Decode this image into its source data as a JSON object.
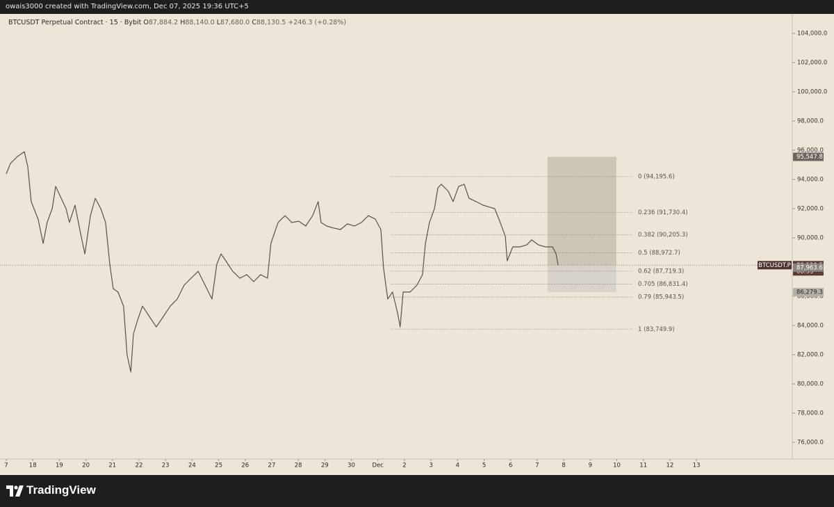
{
  "header": {
    "text": "owais3000 created with TradingView.com, Dec 07, 2025 19:36 UTC+5"
  },
  "footer": {
    "brand": "TradingView"
  },
  "chart_data": {
    "type": "line",
    "legend": {
      "symbol": "BTCUSDT Perpetual Contract · 15 · Bybit",
      "items": [
        {
          "key": "O",
          "text": "87,884.2"
        },
        {
          "key": "H",
          "text": "88,140.0"
        },
        {
          "key": "L",
          "text": "87,680.0"
        },
        {
          "key": "C",
          "text": "88,130.5"
        }
      ],
      "change": "+246.3 (+0.28%)"
    },
    "xlim": [
      -0.236,
      29.61
    ],
    "ylim": [
      73905,
      105333
    ],
    "xticks": [
      {
        "value": 0,
        "label": "7"
      },
      {
        "value": 1,
        "label": "18"
      },
      {
        "value": 2,
        "label": "19"
      },
      {
        "value": 3,
        "label": "20"
      },
      {
        "value": 4,
        "label": "21"
      },
      {
        "value": 5,
        "label": "22"
      },
      {
        "value": 6,
        "label": "23"
      },
      {
        "value": 7,
        "label": "24"
      },
      {
        "value": 8,
        "label": "25"
      },
      {
        "value": 9,
        "label": "26"
      },
      {
        "value": 10,
        "label": "27"
      },
      {
        "value": 11,
        "label": "28"
      },
      {
        "value": 12,
        "label": "29"
      },
      {
        "value": 13,
        "label": "30"
      },
      {
        "value": 14,
        "label": "Dec"
      },
      {
        "value": 15,
        "label": "2"
      },
      {
        "value": 16,
        "label": "3"
      },
      {
        "value": 17,
        "label": "4"
      },
      {
        "value": 18,
        "label": "5"
      },
      {
        "value": 19,
        "label": "6"
      },
      {
        "value": 20,
        "label": "7"
      },
      {
        "value": 21,
        "label": "8"
      },
      {
        "value": 22,
        "label": "9"
      },
      {
        "value": 23,
        "label": "10"
      },
      {
        "value": 24,
        "label": "11"
      },
      {
        "value": 25,
        "label": "12"
      },
      {
        "value": 26,
        "label": "13"
      }
    ],
    "yticks": [
      {
        "value": 76000,
        "label": "76,000.0"
      },
      {
        "value": 78000,
        "label": "78,000.0"
      },
      {
        "value": 80000,
        "label": "80,000.0"
      },
      {
        "value": 82000,
        "label": "82,000.0"
      },
      {
        "value": 84000,
        "label": "84,000.0"
      },
      {
        "value": 86000,
        "label": "86,000.0"
      },
      {
        "value": 88000,
        "label": "88,000.0"
      },
      {
        "value": 90000,
        "label": "90,000.0"
      },
      {
        "value": 92000,
        "label": "92,000.0"
      },
      {
        "value": 94000,
        "label": "94,000.0"
      },
      {
        "value": 96000,
        "label": "96,000.0"
      },
      {
        "value": 98000,
        "label": "98,000.0"
      },
      {
        "value": 100000,
        "label": "100,000.0"
      },
      {
        "value": 102000,
        "label": "102,000.0"
      },
      {
        "value": 104000,
        "label": "104,000.0"
      }
    ],
    "series": [
      {
        "color": "#5a5148",
        "x": [
          0,
          0.16,
          0.42,
          0.68,
          0.81,
          0.94,
          1.2,
          1.39,
          1.54,
          1.73,
          1.86,
          2.07,
          2.25,
          2.38,
          2.59,
          2.77,
          2.96,
          3.17,
          3.35,
          3.56,
          3.74,
          3.9,
          4.03,
          4.21,
          4.42,
          4.55,
          4.69,
          4.79,
          4.95,
          5.13,
          5.39,
          5.65,
          5.92,
          6.18,
          6.44,
          6.7,
          6.96,
          7.23,
          7.49,
          7.75,
          7.93,
          8.09,
          8.27,
          8.53,
          8.8,
          9.06,
          9.32,
          9.58,
          9.84,
          9.97,
          10.24,
          10.5,
          10.76,
          11.02,
          11.28,
          11.54,
          11.75,
          11.86,
          12.07,
          12.33,
          12.59,
          12.85,
          13.12,
          13.38,
          13.64,
          13.9,
          14.11,
          14.21,
          14.37,
          14.55,
          14.74,
          14.84,
          14.95,
          15.21,
          15.47,
          15.68,
          15.79,
          15.94,
          16.13,
          16.26,
          16.39,
          16.65,
          16.83,
          17.04,
          17.25,
          17.43,
          17.7,
          17.96,
          18.22,
          18.4,
          18.61,
          18.8,
          18.87,
          19.08,
          19.35,
          19.61,
          19.79,
          20.05,
          20.31,
          20.58,
          20.71,
          20.79
        ],
        "values": [
          94380,
          95100,
          95570,
          95900,
          94860,
          92480,
          91290,
          89620,
          91050,
          92000,
          93520,
          92710,
          92000,
          91050,
          92240,
          90570,
          88900,
          91520,
          92710,
          92000,
          91050,
          88190,
          86520,
          86290,
          85330,
          82000,
          80810,
          83430,
          84380,
          85330,
          84620,
          83900,
          84620,
          85330,
          85810,
          86760,
          87240,
          87710,
          86760,
          85810,
          88190,
          88900,
          88430,
          87710,
          87240,
          87480,
          87000,
          87480,
          87240,
          89620,
          91050,
          91520,
          91050,
          91140,
          90810,
          91520,
          92480,
          91050,
          90810,
          90670,
          90570,
          90950,
          90810,
          91050,
          91520,
          91290,
          90570,
          87950,
          85810,
          86290,
          84860,
          83900,
          86290,
          86290,
          86760,
          87480,
          89620,
          91050,
          92000,
          93430,
          93670,
          93190,
          92480,
          93520,
          93670,
          92710,
          92480,
          92240,
          92100,
          92000,
          91050,
          90100,
          88430,
          89380,
          89380,
          89520,
          89860,
          89520,
          89380,
          89380,
          88900,
          88130.5
        ]
      }
    ],
    "fib": {
      "x": [
        14.5,
        23.59
      ],
      "levels": [
        {
          "value": 94195.6,
          "label": "0 (94,195.6)"
        },
        {
          "value": 91730.4,
          "label": "0.236 (91,730.4)"
        },
        {
          "value": 90205.3,
          "label": "0.382 (90,205.3)"
        },
        {
          "value": 88972.7,
          "label": "0.5 (88,972.7)"
        },
        {
          "value": 87719.3,
          "label": "0.62 (87,719.3)"
        },
        {
          "value": 86831.4,
          "label": "0.705 (86,831.4)"
        },
        {
          "value": 85943.5,
          "label": "0.79 (85,943.5)"
        },
        {
          "value": 83749.9,
          "label": "1 (83,749.9)"
        }
      ]
    },
    "position_box": {
      "x": [
        20.39,
        22.98
      ],
      "top": 95547.8,
      "entry": 88130.5,
      "bottom": 86279.3
    },
    "last_price": {
      "value": 88130.5,
      "label": "88,130.5",
      "symbol": "BTCUSDT.P",
      "countdown": "08:35"
    },
    "price_labels": [
      {
        "value": 95547.8,
        "label": "95,547.8",
        "color": "#6e665c"
      },
      {
        "value": 87963.6,
        "label": "87,963.6",
        "color": "#8a847c"
      },
      {
        "value": 86279.3,
        "label": "86,279.3",
        "color": "#b4afa8"
      }
    ]
  }
}
